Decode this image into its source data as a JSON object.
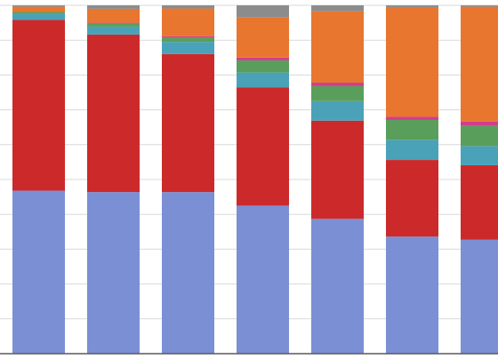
{
  "chart_data": {
    "type": "bar",
    "stacked": true,
    "normalized": true,
    "ylim": [
      0,
      1
    ],
    "grid": true,
    "categories": [
      "",
      "",
      "",
      "",
      "",
      "",
      ""
    ],
    "series": [
      {
        "color": "#7b8fd4",
        "values": [
          0.468,
          0.464,
          0.464,
          0.425,
          0.387,
          0.336,
          0.327
        ]
      },
      {
        "color": "#cc2a2a",
        "values": [
          0.49,
          0.452,
          0.396,
          0.339,
          0.282,
          0.22,
          0.214
        ]
      },
      {
        "color": "#4aa2b8",
        "values": [
          0.018,
          0.023,
          0.035,
          0.043,
          0.056,
          0.058,
          0.055
        ]
      },
      {
        "color": "#5a9e5c",
        "values": [
          0.005,
          0.008,
          0.013,
          0.035,
          0.043,
          0.057,
          0.058
        ]
      },
      {
        "color": "#d23d8e",
        "values": [
          0.0,
          0.003,
          0.003,
          0.008,
          0.01,
          0.009,
          0.012
        ]
      },
      {
        "color": "#e8762f",
        "values": [
          0.015,
          0.04,
          0.08,
          0.115,
          0.205,
          0.315,
          0.33
        ]
      },
      {
        "color": "#8c8c8c",
        "values": [
          0.004,
          0.01,
          0.009,
          0.035,
          0.017,
          0.005,
          0.004
        ]
      }
    ]
  }
}
